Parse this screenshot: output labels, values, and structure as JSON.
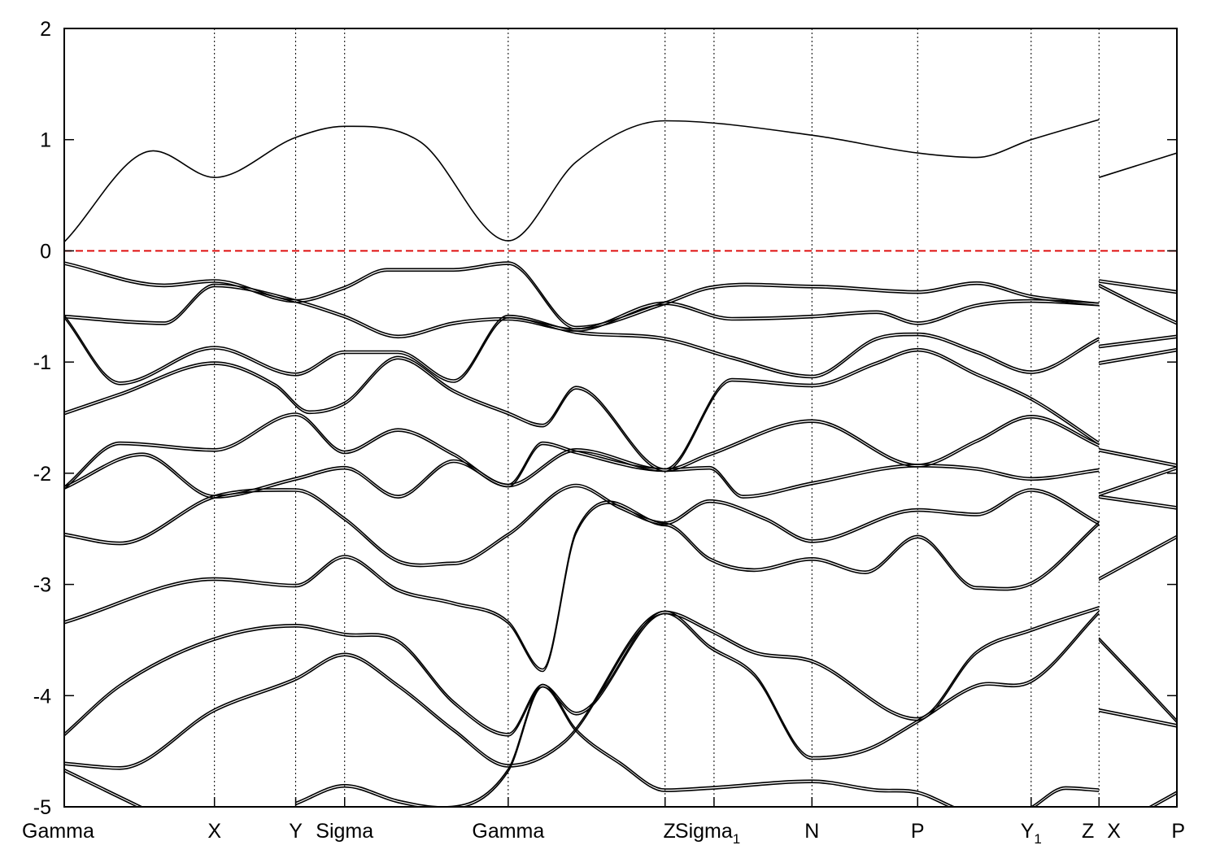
{
  "chart_data": {
    "type": "line",
    "title": "",
    "xlabel": "",
    "ylabel": "",
    "ylim": [
      -5,
      2
    ],
    "xlim": [
      0,
      10
    ],
    "yticks": [
      -5,
      -4,
      -3,
      -2,
      -1,
      0,
      1,
      2
    ],
    "grid": "vertical dotted lines at high-symmetry points",
    "high_symmetry_points": [
      {
        "label": "Gamma",
        "sub": "",
        "x": 0
      },
      {
        "label": "X",
        "sub": "",
        "x": 1.35
      },
      {
        "label": "Y",
        "sub": "",
        "x": 2.08
      },
      {
        "label": "Sigma",
        "sub": "",
        "x": 2.52
      },
      {
        "label": "Gamma",
        "sub": "",
        "x": 3.99
      },
      {
        "label": "Z",
        "sub": "",
        "x": 5.4
      },
      {
        "label": "Sigma",
        "sub": "1",
        "x": 5.84
      },
      {
        "label": "N",
        "sub": "",
        "x": 6.72
      },
      {
        "label": "P",
        "sub": "",
        "x": 7.67
      },
      {
        "label": "Y",
        "sub": "1",
        "x": 8.69
      },
      {
        "label": "Z",
        "sub": "",
        "x": 9.3
      },
      {
        "label": "X",
        "sub": "",
        "x": 9.3
      },
      {
        "label": "P",
        "sub": "",
        "x": 10
      }
    ],
    "fermi_level": {
      "y": 0,
      "color": "#dd0000"
    },
    "series": [
      {
        "x": [
          0,
          0.8,
          1.35,
          2.08,
          2.52,
          3.2,
          3.99,
          4.6,
          5.4,
          6.72,
          7.67,
          8.2,
          8.69,
          9.3
        ],
        "y": [
          0.08,
          0.9,
          0.66,
          1.02,
          1.12,
          0.98,
          0.09,
          0.8,
          1.17,
          1.04,
          0.88,
          0.84,
          1.0,
          1.18
        ]
      },
      {
        "x": [
          9.3,
          10
        ],
        "y": [
          0.66,
          0.88
        ]
      },
      {
        "x": [
          0,
          0.9,
          1.35,
          2.08,
          2.52,
          2.9,
          3.5,
          3.99,
          4.6,
          5.4,
          5.8,
          6.72,
          7.67,
          8.2,
          8.69,
          9.3
        ],
        "y": [
          -0.1,
          -0.3,
          -0.26,
          -0.44,
          -0.32,
          -0.16,
          -0.16,
          -0.1,
          -0.68,
          -0.46,
          -0.32,
          -0.31,
          -0.36,
          -0.28,
          -0.4,
          -0.47
        ]
      },
      {
        "x": [
          0,
          0.9,
          1.35,
          2.08,
          2.52,
          3.0,
          3.5,
          3.99,
          4.6,
          5.4,
          6.0,
          6.72,
          7.3,
          7.67,
          8.2,
          8.69,
          9.3
        ],
        "y": [
          -0.58,
          -0.64,
          -0.3,
          -0.44,
          -0.58,
          -0.76,
          -0.64,
          -0.6,
          -0.7,
          -0.46,
          -0.6,
          -0.58,
          -0.54,
          -0.64,
          -0.48,
          -0.44,
          -0.47
        ]
      },
      {
        "x": [
          9.3,
          10
        ],
        "y": [
          -0.26,
          -0.36
        ]
      },
      {
        "x": [
          9.3,
          9.7,
          10
        ],
        "y": [
          -0.3,
          -0.5,
          -0.64
        ]
      },
      {
        "x": [
          0,
          0.5,
          1.35,
          2.08,
          2.52,
          3.0,
          3.5,
          3.99,
          4.6,
          5.4,
          6.0,
          6.72,
          7.3,
          7.67,
          8.2,
          8.69,
          9.3
        ],
        "y": [
          -0.58,
          -1.18,
          -0.86,
          -1.1,
          -0.9,
          -0.9,
          -1.16,
          -0.58,
          -0.72,
          -0.78,
          -0.95,
          -1.12,
          -0.78,
          -0.74,
          -0.9,
          -1.08,
          -0.78
        ]
      },
      {
        "x": [
          9.3,
          10
        ],
        "y": [
          -0.85,
          -0.76
        ]
      },
      {
        "x": [
          0,
          0.5,
          1.35,
          1.9,
          2.2,
          2.52,
          3.0,
          3.5,
          3.99,
          4.3,
          4.6,
          5.4,
          6.0,
          6.72,
          7.3,
          7.67,
          8.2,
          8.69,
          9.3
        ],
        "y": [
          -1.45,
          -1.28,
          -1.0,
          -1.2,
          -1.44,
          -1.36,
          -0.95,
          -1.25,
          -1.45,
          -1.56,
          -1.22,
          -1.96,
          -1.15,
          -1.2,
          -1.0,
          -0.88,
          -1.1,
          -1.32,
          -1.72
        ]
      },
      {
        "x": [
          9.3,
          10
        ],
        "y": [
          -1.0,
          -0.88
        ]
      },
      {
        "x": [
          0,
          0.5,
          1.35,
          2.08,
          2.52,
          3.0,
          3.5,
          3.99,
          4.6,
          5.4,
          5.8,
          6.72,
          7.67,
          8.2,
          8.69,
          9.3
        ],
        "y": [
          -2.12,
          -1.72,
          -1.78,
          -1.46,
          -1.8,
          -1.6,
          -1.82,
          -2.1,
          -1.78,
          -1.96,
          -1.82,
          -1.52,
          -1.92,
          -1.7,
          -1.48,
          -1.74
        ]
      },
      {
        "x": [
          9.3,
          10
        ],
        "y": [
          -1.78,
          -1.92
        ]
      },
      {
        "x": [
          0,
          0.7,
          1.35,
          2.08,
          2.52,
          3.0,
          3.5,
          3.99,
          4.3,
          4.6,
          5.4,
          5.8,
          6.1,
          6.72,
          7.67,
          8.2,
          8.69,
          9.3
        ],
        "y": [
          -2.12,
          -1.82,
          -2.2,
          -2.04,
          -1.94,
          -2.2,
          -1.88,
          -2.1,
          -1.72,
          -1.8,
          -1.96,
          -1.94,
          -2.2,
          -2.08,
          -1.92,
          -1.95,
          -2.04,
          -1.96
        ]
      },
      {
        "x": [
          9.3,
          10
        ],
        "y": [
          -2.18,
          -1.94
        ]
      },
      {
        "x": [
          0,
          0.5,
          1.35,
          2.08,
          2.52,
          3.0,
          3.5,
          3.99,
          4.6,
          5.0,
          5.4,
          5.8,
          6.3,
          6.72,
          7.67,
          8.2,
          8.69,
          9.3
        ],
        "y": [
          -2.54,
          -2.62,
          -2.2,
          -2.14,
          -2.4,
          -2.78,
          -2.8,
          -2.54,
          -2.1,
          -2.3,
          -2.44,
          -2.24,
          -2.4,
          -2.6,
          -2.32,
          -2.36,
          -2.14,
          -2.44
        ]
      },
      {
        "x": [
          9.3,
          10
        ],
        "y": [
          -2.2,
          -2.3
        ]
      },
      {
        "x": [
          0,
          1.35,
          2.08,
          2.52,
          3.0,
          3.5,
          3.99,
          4.3,
          4.6,
          5.4,
          5.8,
          6.2,
          6.72,
          7.2,
          7.67,
          8.2,
          8.69,
          9.3
        ],
        "y": [
          -3.33,
          -2.94,
          -3.0,
          -2.74,
          -3.04,
          -3.16,
          -3.33,
          -3.76,
          -2.52,
          -2.45,
          -2.76,
          -2.86,
          -2.76,
          -2.88,
          -2.56,
          -3.02,
          -2.98,
          -2.44
        ]
      },
      {
        "x": [
          9.3,
          10
        ],
        "y": [
          -2.94,
          -2.56
        ]
      },
      {
        "x": [
          0,
          0.5,
          1.35,
          2.08,
          2.52,
          3.0,
          3.5,
          3.99,
          4.3,
          4.6,
          5.4,
          5.8,
          6.2,
          6.72,
          7.67,
          8.2,
          8.69,
          9.3
        ],
        "y": [
          -4.34,
          -3.9,
          -3.48,
          -3.36,
          -3.44,
          -3.5,
          -4.05,
          -4.34,
          -3.9,
          -4.15,
          -3.24,
          -3.4,
          -3.6,
          -3.68,
          -4.2,
          -3.6,
          -3.4,
          -3.2
        ]
      },
      {
        "x": [
          9.3,
          9.7,
          10
        ],
        "y": [
          -3.48,
          -3.9,
          -4.22
        ]
      },
      {
        "x": [
          0,
          0.5,
          1.35,
          2.08,
          2.52,
          3.0,
          3.5,
          3.99,
          4.5,
          5.4,
          5.8,
          6.2,
          6.72,
          7.2,
          7.67,
          8.2,
          8.69,
          9.3
        ],
        "y": [
          -4.6,
          -4.64,
          -4.12,
          -3.84,
          -3.62,
          -3.9,
          -4.3,
          -4.62,
          -4.4,
          -3.24,
          -3.55,
          -3.8,
          -4.55,
          -4.48,
          -4.22,
          -3.9,
          -3.86,
          -3.24
        ]
      },
      {
        "x": [
          9.3,
          10
        ],
        "y": [
          -4.12,
          -4.26
        ]
      },
      {
        "x": [
          0,
          0.7
        ],
        "y": [
          -4.66,
          -5.0
        ]
      },
      {
        "x": [
          2.08,
          2.52,
          3.0,
          3.4,
          3.99,
          4.3,
          4.6,
          5.0,
          5.4,
          5.8,
          6.72,
          7.3,
          7.67,
          8.0
        ],
        "y": [
          -4.96,
          -4.8,
          -4.94,
          -5.0,
          -4.66,
          -3.9,
          -4.3,
          -4.6,
          -4.84,
          -4.82,
          -4.76,
          -4.84,
          -4.86,
          -5.0
        ]
      },
      {
        "x": [
          8.69,
          9.0,
          9.3
        ],
        "y": [
          -5.0,
          -4.82,
          -4.84
        ]
      },
      {
        "x": [
          9.75,
          10
        ],
        "y": [
          -5.0,
          -4.86
        ]
      }
    ]
  }
}
